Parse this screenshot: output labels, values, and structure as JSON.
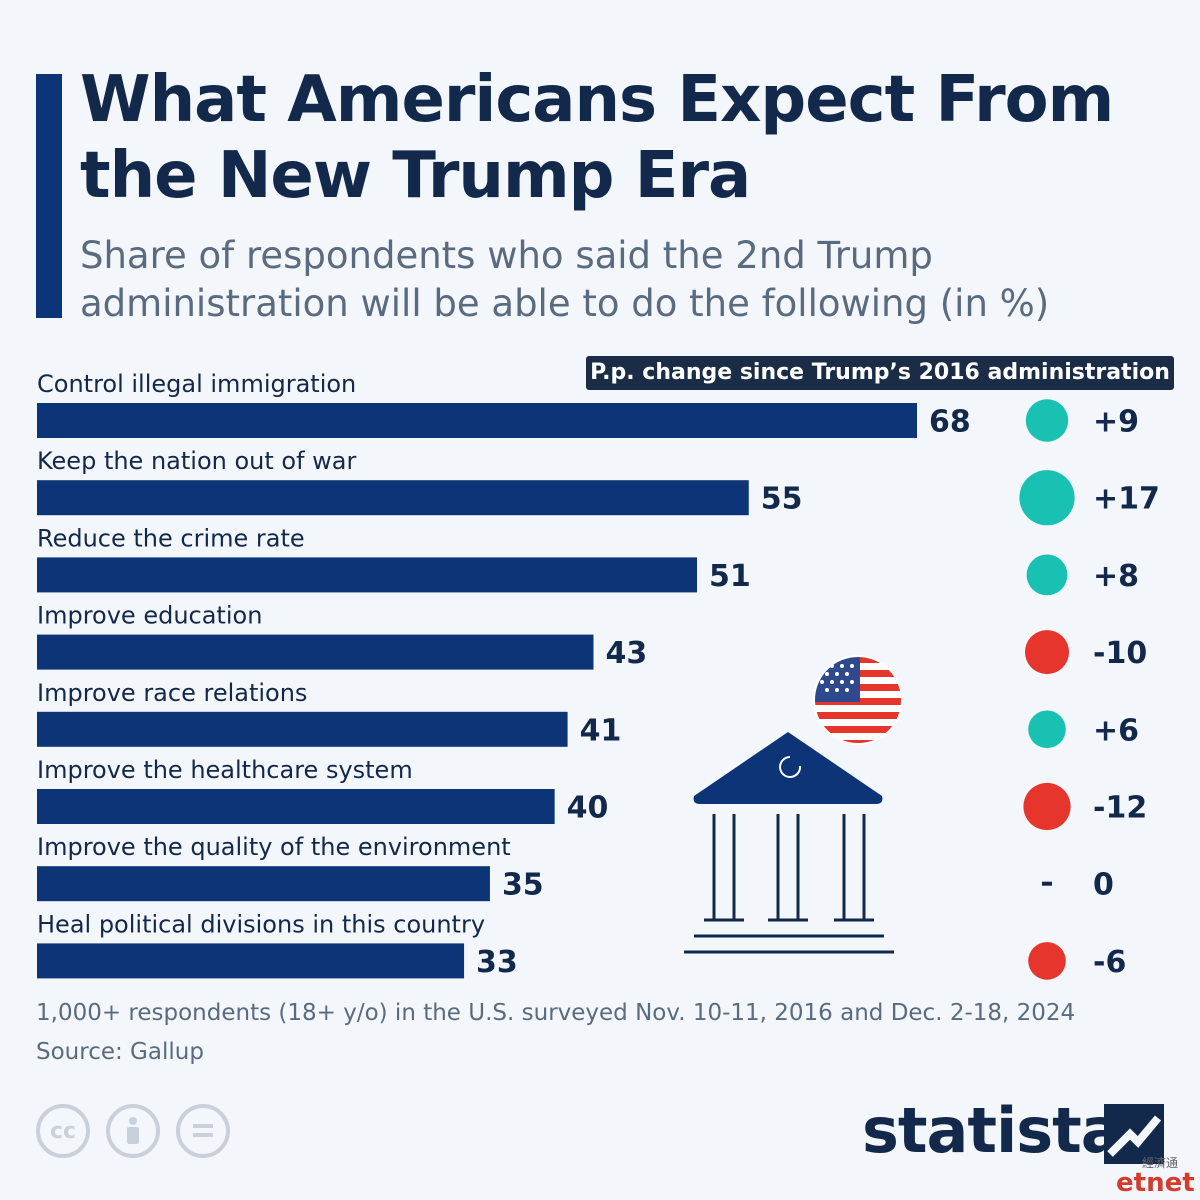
{
  "title": "What Americans Expect From the New Trump Era",
  "subtitle": "Share of respondents who said the 2nd Trump administration will be able to do the following (in %)",
  "change_header": "P.p. change since Trump’s 2016 administration",
  "note": "1,000+ respondents (18+ y/o) in the U.S. surveyed Nov. 10-11, 2016 and Dec. 2-18, 2024",
  "source": "Source: Gallup",
  "brand": "statista",
  "watermark": "etnet",
  "watermark_cn": "經濟通",
  "colors": {
    "bar": "#0c3477",
    "positive": "#18c1b1",
    "negative": "#e5352c",
    "text": "#13294b"
  },
  "icons": [
    "creative-commons-icon",
    "attribution-icon",
    "no-derivatives-icon",
    "flag-icon",
    "government-building-icon"
  ],
  "chart_data": {
    "type": "bar",
    "orientation": "horizontal",
    "categories": [
      "Control illegal immigration",
      "Keep the nation out of war",
      "Reduce the crime rate",
      "Improve education",
      "Improve race relations",
      "Improve the healthcare system",
      "Improve the quality of the environment",
      "Heal political divisions in this country"
    ],
    "values": [
      68,
      55,
      51,
      43,
      41,
      40,
      35,
      33
    ],
    "change": [
      9,
      17,
      8,
      -10,
      6,
      -12,
      0,
      -6
    ],
    "change_labels": [
      "+9",
      "+17",
      "+8",
      "-10",
      "+6",
      "-12",
      "0",
      "-6"
    ],
    "xlim": [
      0,
      100
    ]
  }
}
